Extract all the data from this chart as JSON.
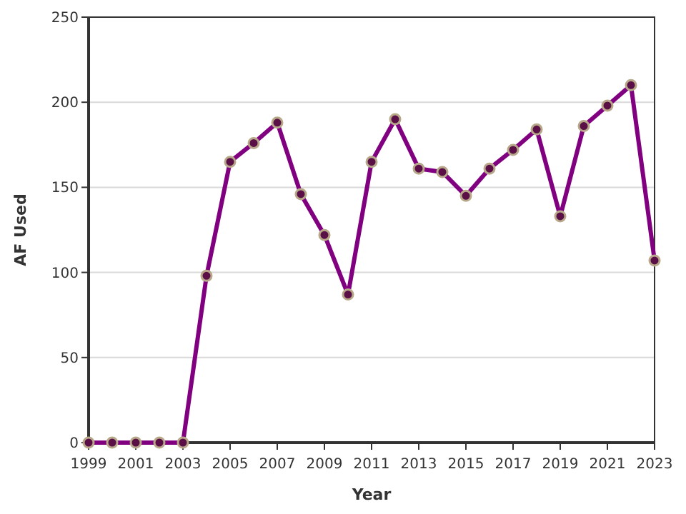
{
  "chart_data": {
    "type": "line",
    "xlabel": "Year",
    "ylabel": "AF Used",
    "x": [
      1999,
      2000,
      2001,
      2002,
      2003,
      2004,
      2005,
      2006,
      2007,
      2008,
      2009,
      2010,
      2011,
      2012,
      2013,
      2014,
      2015,
      2016,
      2017,
      2018,
      2019,
      2020,
      2021,
      2022,
      2023
    ],
    "series": [
      {
        "color": "#800080",
        "values": [
          0,
          0,
          0,
          0,
          0,
          98,
          165,
          176,
          188,
          146,
          122,
          87,
          165,
          190,
          161,
          159,
          145,
          161,
          172,
          184,
          133,
          186,
          198,
          210,
          107
        ]
      }
    ],
    "xlim": [
      1999,
      2023
    ],
    "xticks": [
      1999,
      2001,
      2003,
      2005,
      2007,
      2009,
      2011,
      2013,
      2015,
      2017,
      2019,
      2021,
      2023
    ],
    "ylim": [
      0,
      250
    ],
    "yticks": [
      0,
      50,
      100,
      150,
      200,
      250
    ],
    "grid": "y",
    "marker": "circle",
    "line_style": "solid"
  }
}
